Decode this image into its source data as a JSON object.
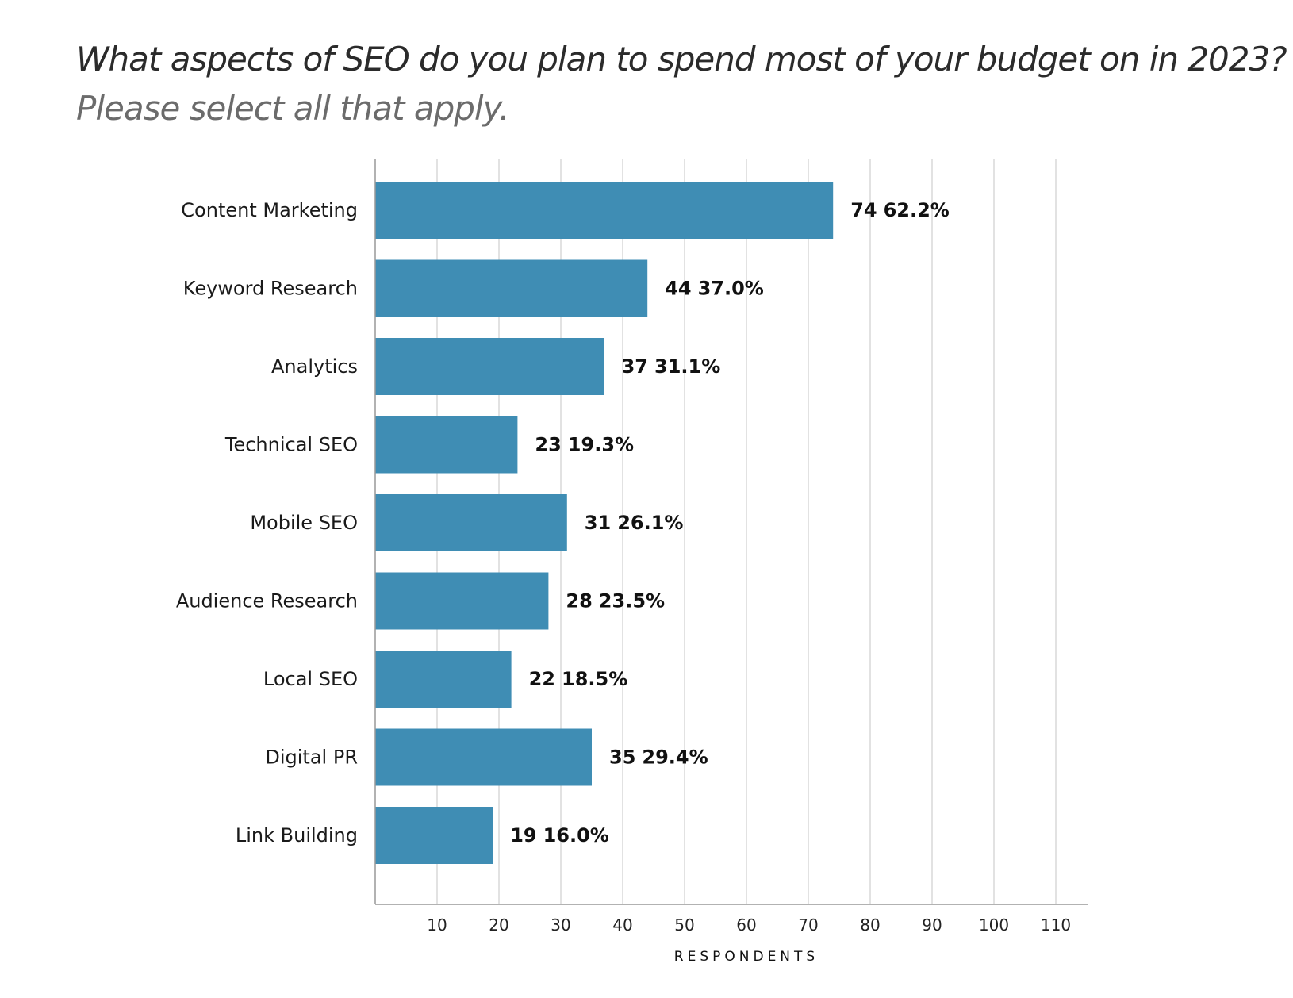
{
  "colors": {
    "bar": "#3f8db4",
    "grid": "#d9d9d9",
    "axis": "#999999"
  },
  "chart_data": {
    "type": "bar",
    "orientation": "horizontal",
    "title": "What aspects of SEO do you plan to spend most of your budget on in 2023?",
    "subtitle": "Please select all that apply.",
    "xlabel": "RESPONDENTS",
    "ylabel": "",
    "xlim": [
      0,
      115
    ],
    "xticks": [
      10,
      20,
      30,
      40,
      50,
      60,
      70,
      80,
      90,
      100,
      110
    ],
    "grid": true,
    "categories": [
      "Content Marketing",
      "Keyword Research",
      "Analytics",
      "Technical SEO",
      "Mobile SEO",
      "Audience Research",
      "Local SEO",
      "Digital PR",
      "Link Building"
    ],
    "values": [
      74,
      44,
      37,
      23,
      31,
      28,
      22,
      35,
      19
    ],
    "percents": [
      "62.2%",
      "37.0%",
      "31.1%",
      "19.3%",
      "26.1%",
      "23.5%",
      "18.5%",
      "29.4%",
      "16.0%"
    ]
  }
}
